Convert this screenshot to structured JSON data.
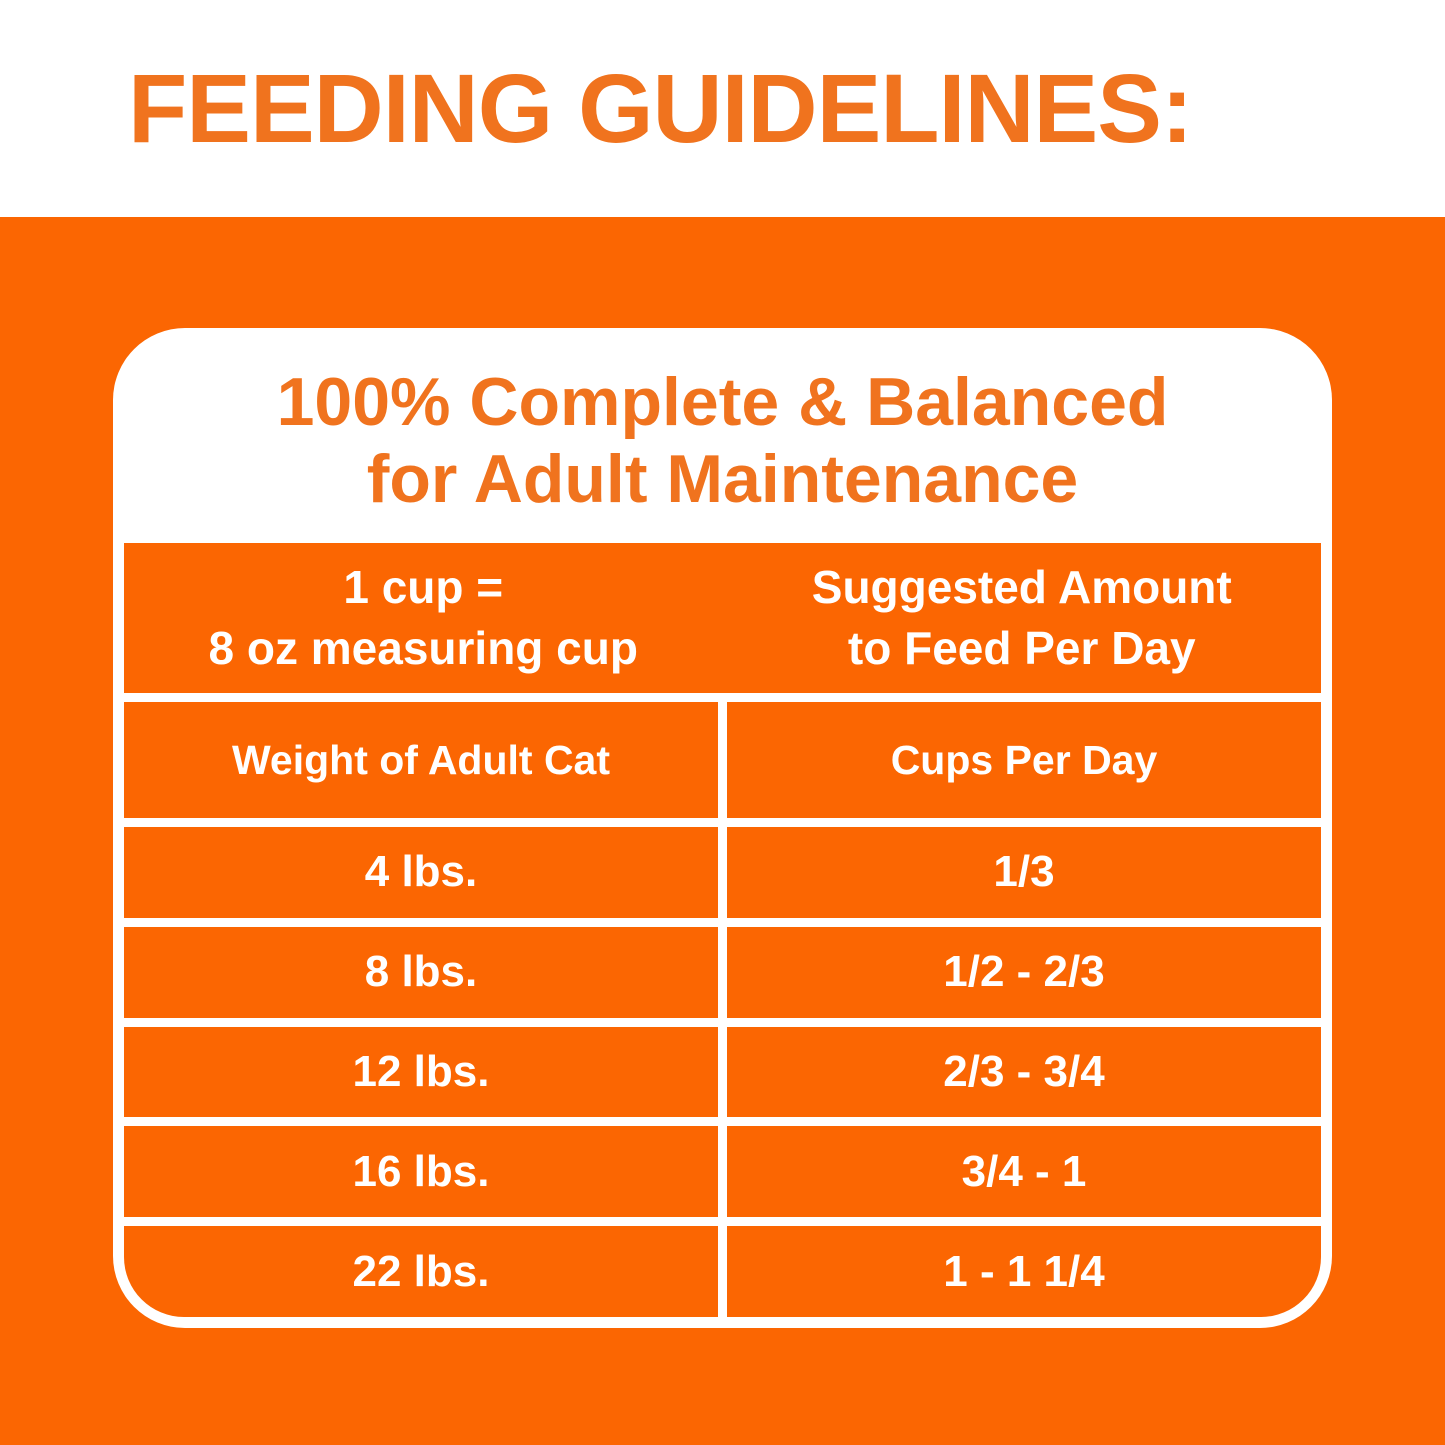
{
  "title": "FEEDING GUIDELINES:",
  "card": {
    "heading": {
      "line1": "100% Complete & Balanced",
      "line2": "for Adult Maintenance"
    },
    "table": {
      "header_left": {
        "line1": "1 cup =",
        "line2": "8 oz measuring cup"
      },
      "header_right": {
        "line1": "Suggested Amount",
        "line2": "to Feed Per Day"
      },
      "columns": {
        "weight": "Weight of Adult Cat",
        "cups": "Cups Per Day"
      },
      "rows": [
        {
          "weight": "4 lbs.",
          "cups": "1/3"
        },
        {
          "weight": "8 lbs.",
          "cups": "1/2 - 2/3"
        },
        {
          "weight": "12 lbs.",
          "cups": "2/3 - 3/4"
        },
        {
          "weight": "16 lbs.",
          "cups": "3/4 - 1"
        },
        {
          "weight": "22 lbs.",
          "cups": "1 - 1 1/4"
        }
      ]
    }
  },
  "colors": {
    "background_orange": "#FB6602",
    "accent_text_orange": "#F0731E",
    "text_white": "#FFFFFF"
  }
}
